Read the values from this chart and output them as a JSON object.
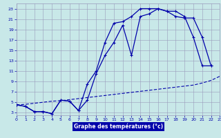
{
  "xlabel": "Graphe des températures (°c)",
  "bg_color": "#c8e8e8",
  "grid_color": "#9999bb",
  "line_color": "#0000aa",
  "xlim": [
    0,
    23
  ],
  "ylim": [
    2.5,
    24
  ],
  "yticks": [
    3,
    5,
    7,
    9,
    11,
    13,
    15,
    17,
    19,
    21,
    23
  ],
  "xticks": [
    0,
    1,
    2,
    3,
    4,
    5,
    6,
    7,
    8,
    9,
    10,
    11,
    12,
    13,
    14,
    15,
    16,
    17,
    18,
    19,
    20,
    21,
    22,
    23
  ],
  "line1_x": [
    0,
    1,
    2,
    3,
    4,
    5,
    6,
    7,
    8,
    9,
    10,
    11,
    12,
    13,
    14,
    15,
    16,
    17,
    18,
    19,
    20,
    21,
    22
  ],
  "line1_y": [
    4.5,
    4.2,
    3.2,
    3.2,
    2.8,
    5.4,
    5.2,
    3.4,
    8.5,
    11.0,
    16.5,
    20.2,
    20.5,
    21.5,
    23.0,
    23.0,
    23.0,
    22.5,
    22.5,
    21.5,
    17.5,
    12.0,
    12.0
  ],
  "line2_x": [
    0,
    1,
    2,
    3,
    4,
    5,
    6,
    7,
    8,
    9,
    10,
    11,
    12,
    13,
    14,
    15,
    16,
    17,
    18,
    19,
    20,
    21,
    22
  ],
  "line2_y": [
    4.5,
    4.2,
    3.2,
    3.2,
    2.8,
    5.4,
    5.2,
    3.4,
    5.4,
    10.5,
    14.0,
    16.5,
    19.8,
    14.0,
    21.5,
    22.0,
    23.0,
    22.5,
    21.5,
    21.2,
    21.2,
    17.5,
    12.0
  ],
  "line3_x": [
    0,
    1,
    2,
    3,
    4,
    5,
    6,
    7,
    8,
    9,
    10,
    11,
    12,
    13,
    14,
    15,
    16,
    17,
    18,
    19,
    20,
    21,
    22,
    23
  ],
  "line3_y": [
    4.5,
    4.6,
    4.8,
    5.0,
    5.2,
    5.3,
    5.5,
    5.7,
    5.9,
    6.1,
    6.3,
    6.5,
    6.7,
    6.9,
    7.1,
    7.3,
    7.5,
    7.7,
    7.9,
    8.1,
    8.3,
    8.7,
    9.2,
    10.0
  ]
}
